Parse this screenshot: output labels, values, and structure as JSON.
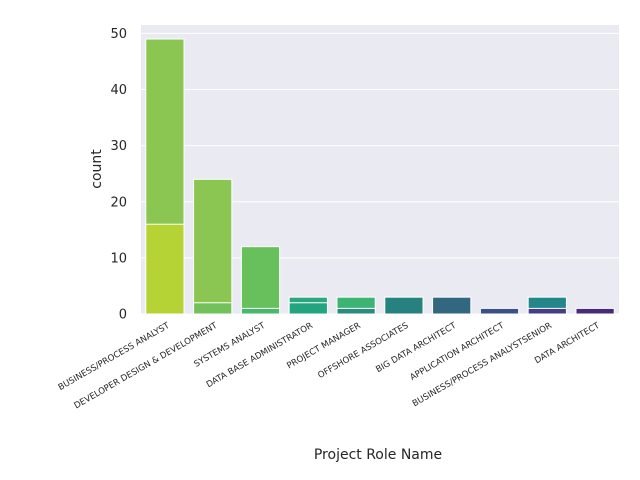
{
  "chart_data": {
    "type": "bar",
    "xlabel": "Project Role Name",
    "ylabel": "count",
    "ylim": [
      0,
      51.5
    ],
    "yticks": [
      0,
      10,
      20,
      30,
      40,
      50
    ],
    "grid": true,
    "legend": "none",
    "background": "#eaeaf2",
    "categories": [
      "BUSINESS/PROCESS ANALYST",
      "DEVELOPER DESIGN & DEVELOPMENT",
      "SYSTEMS ANALYST",
      "DATA BASE ADMINISTRATOR",
      "PROJECT MANAGER",
      "OFFSHORE ASSOCIATES",
      "BIG DATA ARCHITECT",
      "APPLICATION ARCHITECT",
      "BUSINESS/PROCESS ANALYSTSENIOR",
      "DATA ARCHITECT"
    ],
    "stacked_layers": [
      {
        "values": [
          49,
          24,
          12,
          3,
          3,
          3,
          3,
          1,
          3,
          1
        ],
        "colors": [
          "#8bc653",
          "#8bc653",
          "#68c05c",
          "#2da57d",
          "#3eb474",
          "#25827e",
          "#31677f",
          "#3b4f89",
          "#23868a",
          "#472a7a"
        ]
      },
      {
        "values": [
          16,
          2,
          1,
          2,
          1,
          0,
          0,
          0,
          1,
          0
        ],
        "colors": [
          "#b5d334",
          "#73c15a",
          "#46b96d",
          "#21a47f",
          "#2a8c80",
          "#25827e",
          "#31677f",
          "#3b4f89",
          "#433e85",
          "#472a7a"
        ]
      }
    ]
  }
}
